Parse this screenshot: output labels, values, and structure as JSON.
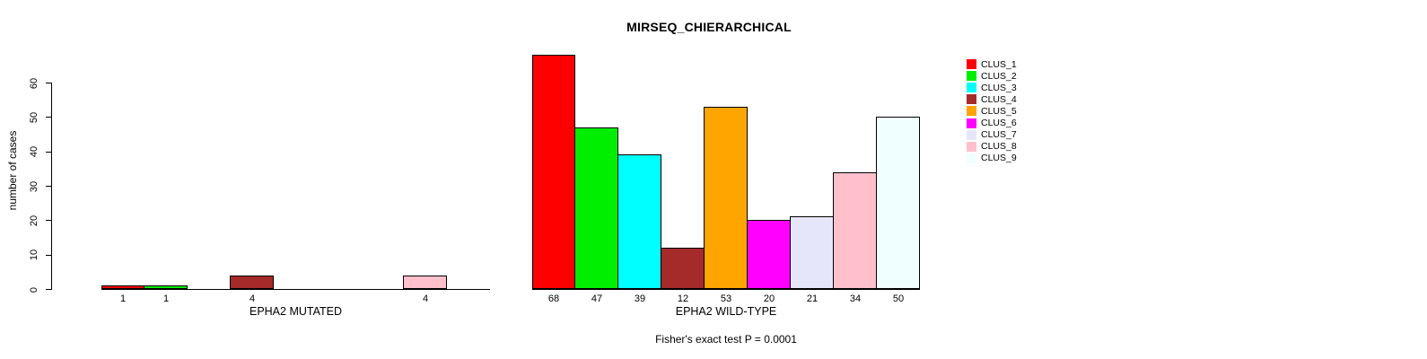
{
  "title": "MIRSEQ_CHIERARCHICAL",
  "caption": "Fisher's exact test P = 0.0001",
  "y_axis": {
    "label": "number of cases",
    "ticks": [
      0,
      10,
      20,
      30,
      40,
      50,
      60
    ],
    "max": 60
  },
  "cluster_colors": [
    "#FF0000",
    "#00EE00",
    "#00FFFF",
    "#A52A2A",
    "#FFA500",
    "#FF00FF",
    "#E6E6FA",
    "#FFC0CB",
    "#F0FFFF"
  ],
  "legend": {
    "items": [
      {
        "label": "CLUS_1",
        "color": "#FF0000"
      },
      {
        "label": "CLUS_2",
        "color": "#00EE00"
      },
      {
        "label": "CLUS_3",
        "color": "#00FFFF"
      },
      {
        "label": "CLUS_4",
        "color": "#A52A2A"
      },
      {
        "label": "CLUS_5",
        "color": "#FFA500"
      },
      {
        "label": "CLUS_6",
        "color": "#FF00FF"
      },
      {
        "label": "CLUS_7",
        "color": "#E6E6FA"
      },
      {
        "label": "CLUS_8",
        "color": "#FFC0CB"
      },
      {
        "label": "CLUS_9",
        "color": "#F0FFFF"
      }
    ]
  },
  "chart_data": [
    {
      "type": "bar",
      "panel": "left",
      "xlabel": "EPHA2 MUTATED",
      "ylabel": "number of cases",
      "ylim": [
        0,
        60
      ],
      "grid": false,
      "categories": [
        "CLUS_1",
        "CLUS_2",
        "CLUS_3",
        "CLUS_4",
        "CLUS_5",
        "CLUS_6",
        "CLUS_7",
        "CLUS_8",
        "CLUS_9"
      ],
      "values": [
        1,
        1,
        0,
        4,
        0,
        0,
        0,
        4,
        0
      ],
      "bar_labels": [
        "1",
        "1",
        "",
        "4",
        "",
        "",
        "",
        "4",
        ""
      ]
    },
    {
      "type": "bar",
      "panel": "right",
      "xlabel": "EPHA2 WILD-TYPE",
      "ylabel": "number of cases",
      "ylim": [
        0,
        60
      ],
      "grid": false,
      "categories": [
        "CLUS_1",
        "CLUS_2",
        "CLUS_3",
        "CLUS_4",
        "CLUS_5",
        "CLUS_6",
        "CLUS_7",
        "CLUS_8",
        "CLUS_9"
      ],
      "values": [
        68,
        47,
        39,
        12,
        53,
        20,
        21,
        34,
        50
      ],
      "bar_labels": [
        "68",
        "47",
        "39",
        "12",
        "53",
        "20",
        "21",
        "34",
        "50"
      ]
    }
  ]
}
